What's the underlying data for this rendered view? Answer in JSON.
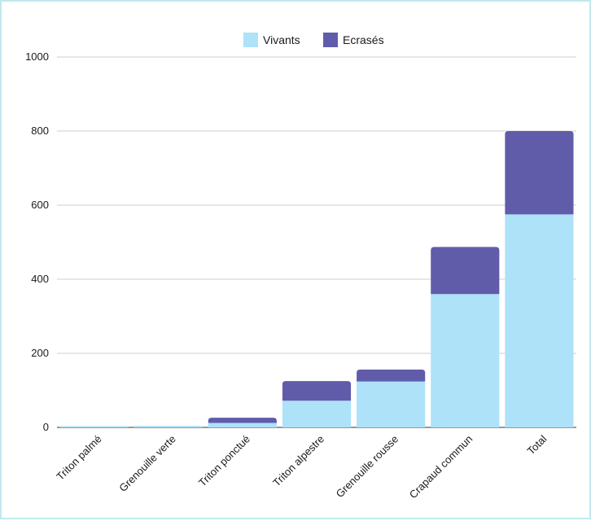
{
  "chart_data": {
    "type": "bar",
    "stacked": true,
    "title": "",
    "xlabel": "",
    "ylabel": "",
    "categories": [
      "Triton palmé",
      "Grenouille verte",
      "Triton ponctué",
      "Triton alpestre",
      "Grenouille rousse",
      "Crapaud commun",
      "Total"
    ],
    "series": [
      {
        "name": "Vivants",
        "color": "#ade2f8",
        "values": [
          1,
          4,
          12,
          72,
          124,
          360,
          575
        ]
      },
      {
        "name": "Ecrasés",
        "color": "#615caa",
        "values": [
          0,
          0,
          14,
          53,
          32,
          127,
          225
        ]
      }
    ],
    "ylim": [
      0,
      1000
    ],
    "yticks": [
      0,
      200,
      400,
      600,
      800,
      1000
    ],
    "grid": true,
    "legend_position": "top"
  }
}
